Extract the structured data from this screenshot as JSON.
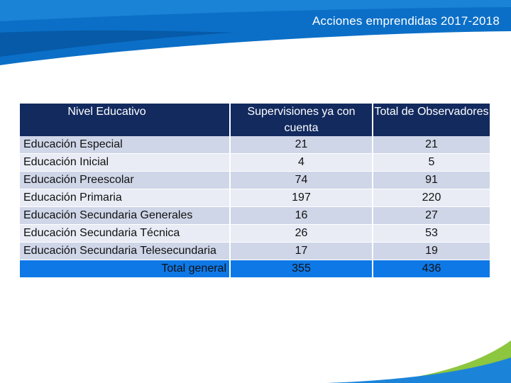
{
  "header": {
    "title": "Acciones emprendidas 2017-2018",
    "band_color": "#0b6fc7"
  },
  "table": {
    "columns": [
      "Nivel Educativo",
      "Supervisiones ya con cuenta",
      "Total de Observadores"
    ],
    "rows": [
      {
        "nivel": "Educación Especial",
        "supervisiones": "21",
        "observadores": "21"
      },
      {
        "nivel": "Educación Inicial",
        "supervisiones": "4",
        "observadores": "5"
      },
      {
        "nivel": "Educación Preescolar",
        "supervisiones": "74",
        "observadores": "91"
      },
      {
        "nivel": "Educación Primaria",
        "supervisiones": "197",
        "observadores": "220"
      },
      {
        "nivel": "Educación Secundaria Generales",
        "supervisiones": "16",
        "observadores": "27"
      },
      {
        "nivel": "Educación Secundaria Técnica",
        "supervisiones": "26",
        "observadores": "53"
      },
      {
        "nivel": "Educación Secundaria Telesecundaria",
        "supervisiones": "17",
        "observadores": "19"
      }
    ],
    "total": {
      "label": "Total general",
      "supervisiones": "355",
      "observadores": "436"
    }
  },
  "colors": {
    "header_fill": "#122a5e",
    "row_dark": "#cfd6e8",
    "row_light": "#e9ecf5",
    "total_fill": "#0e78e6",
    "corner_green": "#8dc63f"
  }
}
